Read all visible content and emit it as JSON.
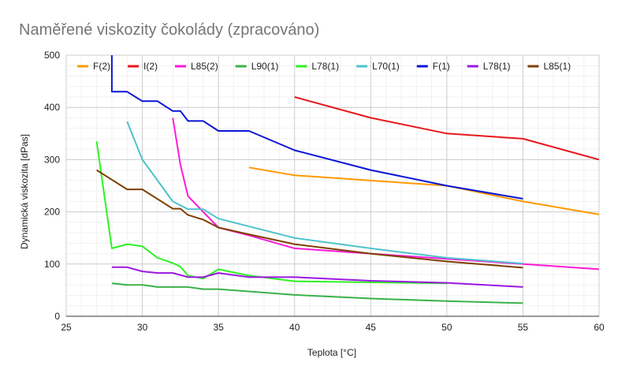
{
  "chart_data": {
    "type": "line",
    "title": "Naměřené viskozity čokolády (zpracováno)",
    "xlabel": "Teplota [°C]",
    "ylabel": "Dynamická viskozita [dPas]",
    "xlim": [
      25,
      60
    ],
    "ylim": [
      0,
      500
    ],
    "xticks": [
      "25",
      "30",
      "35",
      "40",
      "45",
      "50",
      "55",
      "60"
    ],
    "yticks": [
      "0",
      "100",
      "200",
      "300",
      "400",
      "500"
    ],
    "grid": true,
    "legend_position": "top",
    "series": [
      {
        "name": "F(2)",
        "color": "#ff9900",
        "points": [
          [
            37,
            285
          ],
          [
            40,
            270
          ],
          [
            45,
            260
          ],
          [
            50,
            250
          ],
          [
            55,
            220
          ],
          [
            60,
            195
          ]
        ]
      },
      {
        "name": "I(2)",
        "color": "#e8161b",
        "points": [
          [
            40,
            420
          ],
          [
            45,
            380
          ],
          [
            50,
            350
          ],
          [
            55,
            340
          ],
          [
            60,
            300
          ]
        ]
      },
      {
        "name": "L85(2)",
        "color": "#ff19d8",
        "points": [
          [
            32,
            380
          ],
          [
            32.5,
            290
          ],
          [
            33,
            230
          ],
          [
            35,
            170
          ],
          [
            37,
            155
          ],
          [
            40,
            130
          ],
          [
            45,
            120
          ],
          [
            50,
            110
          ],
          [
            55,
            100
          ],
          [
            60,
            90
          ]
        ]
      },
      {
        "name": "L90(1)",
        "color": "#3ab24a",
        "points": [
          [
            28,
            63
          ],
          [
            29,
            60
          ],
          [
            30,
            60
          ],
          [
            31,
            56
          ],
          [
            32,
            56
          ],
          [
            33,
            56
          ],
          [
            34,
            52
          ],
          [
            35,
            52
          ],
          [
            40,
            41
          ],
          [
            45,
            34
          ],
          [
            50,
            29
          ],
          [
            55,
            25
          ]
        ]
      },
      {
        "name": "L78(1)",
        "color": "#2ef223",
        "points": [
          [
            27,
            335
          ],
          [
            28,
            130
          ],
          [
            29,
            138
          ],
          [
            30,
            134
          ],
          [
            31,
            112
          ],
          [
            32,
            102
          ],
          [
            32.5,
            95
          ],
          [
            33,
            78
          ],
          [
            34,
            72
          ],
          [
            35,
            90
          ],
          [
            37,
            78
          ],
          [
            40,
            67
          ],
          [
            45,
            65
          ],
          [
            50,
            63
          ]
        ]
      },
      {
        "name": "L70(1)",
        "color": "#4ec3cd",
        "points": [
          [
            29,
            373
          ],
          [
            30,
            300
          ],
          [
            32,
            220
          ],
          [
            33,
            205
          ],
          [
            34,
            205
          ],
          [
            35,
            187
          ],
          [
            40,
            150
          ],
          [
            45,
            130
          ],
          [
            50,
            112
          ],
          [
            55,
            101
          ]
        ]
      },
      {
        "name": "F(1)",
        "color": "#0a15d8",
        "points": [
          [
            28,
            500
          ],
          [
            28,
            430
          ],
          [
            29,
            430
          ],
          [
            30,
            412
          ],
          [
            31,
            412
          ],
          [
            32,
            393
          ],
          [
            32.5,
            393
          ],
          [
            33,
            374
          ],
          [
            34,
            374
          ],
          [
            35,
            355
          ],
          [
            37,
            355
          ],
          [
            40,
            318
          ],
          [
            45,
            280
          ],
          [
            50,
            250
          ],
          [
            55,
            225
          ]
        ]
      },
      {
        "name": "L78(1)",
        "color": "#9b19e0",
        "points": [
          [
            28,
            94
          ],
          [
            29,
            94
          ],
          [
            30,
            86
          ],
          [
            31,
            83
          ],
          [
            32,
            83
          ],
          [
            33,
            75
          ],
          [
            34,
            75
          ],
          [
            35,
            83
          ],
          [
            37,
            75
          ],
          [
            40,
            75
          ],
          [
            45,
            68
          ],
          [
            50,
            64
          ],
          [
            55,
            56
          ]
        ]
      },
      {
        "name": "L85(1)",
        "color": "#7f3f00",
        "points": [
          [
            27,
            280
          ],
          [
            29,
            243
          ],
          [
            30,
            243
          ],
          [
            32,
            206
          ],
          [
            32.5,
            206
          ],
          [
            33,
            194
          ],
          [
            34,
            185
          ],
          [
            35,
            170
          ],
          [
            37,
            157
          ],
          [
            40,
            138
          ],
          [
            45,
            120
          ],
          [
            50,
            105
          ],
          [
            55,
            93
          ]
        ]
      }
    ]
  }
}
